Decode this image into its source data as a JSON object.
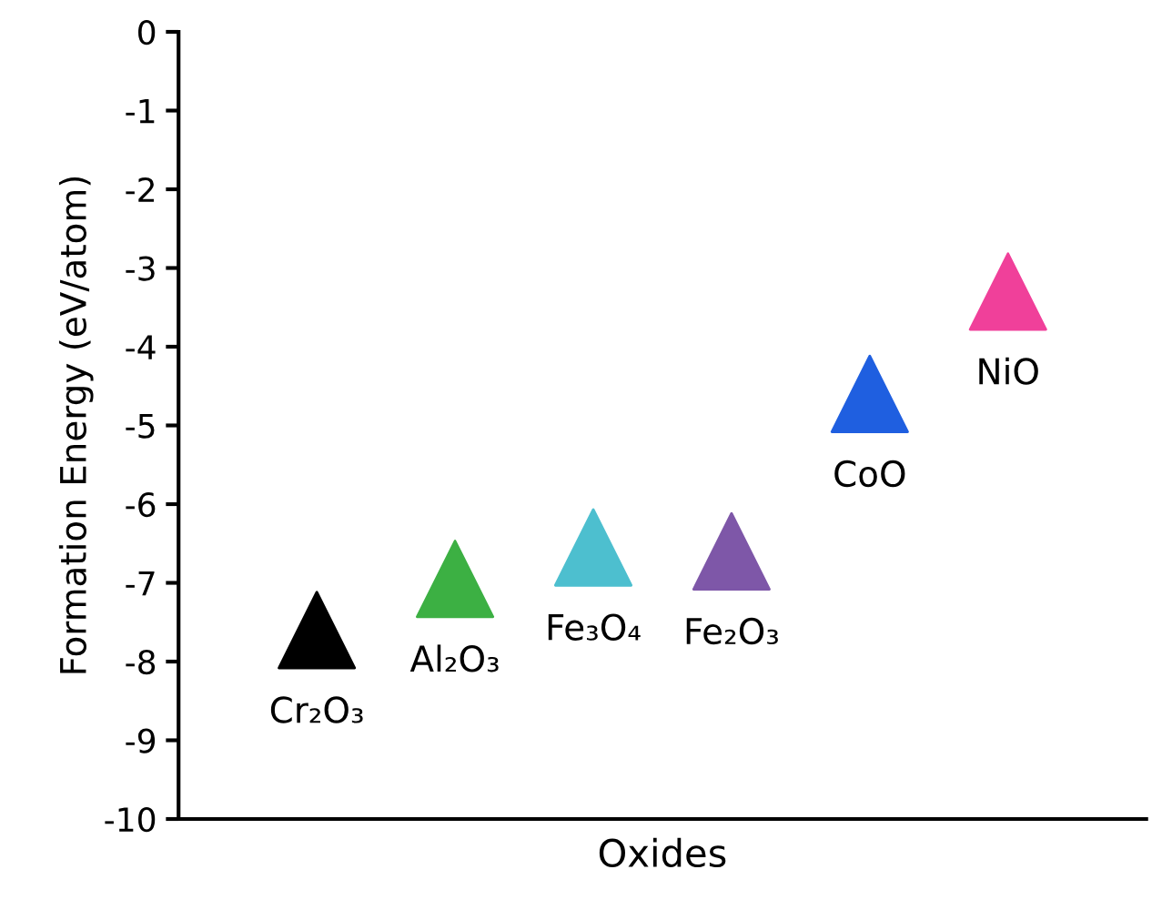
{
  "chart_data": {
    "type": "scatter",
    "xlabel": "Oxides",
    "ylabel": "Formation Energy (eV/atom)",
    "categories": [
      null,
      null,
      null,
      null,
      null,
      null
    ],
    "values": [
      -7.6,
      -6.95,
      -6.55,
      -6.6,
      -4.6,
      -3.3
    ],
    "colors": [
      "#000000",
      "#3cb043",
      "#4dbfcf",
      "#7e57a8",
      "#1f5fe0",
      "#f0409a"
    ],
    "marker": "triangle",
    "ylim": [
      -10,
      0
    ],
    "yticks": [
      -10,
      -9,
      -8,
      -7,
      -6,
      -5,
      -4,
      -3,
      -2,
      -1,
      0
    ],
    "annotations": [
      {
        "text": "Cr₂O₃",
        "y": -7.6
      },
      {
        "text": "Al₂O₃",
        "y": -6.95
      },
      {
        "text": "Fe₃O₄",
        "y": -6.55
      },
      {
        "text": "Fe₂O₃",
        "y": -6.6
      },
      {
        "text": "CoO",
        "y": -4.6
      },
      {
        "text": "NiO",
        "y": -3.3
      }
    ],
    "grid": false
  }
}
